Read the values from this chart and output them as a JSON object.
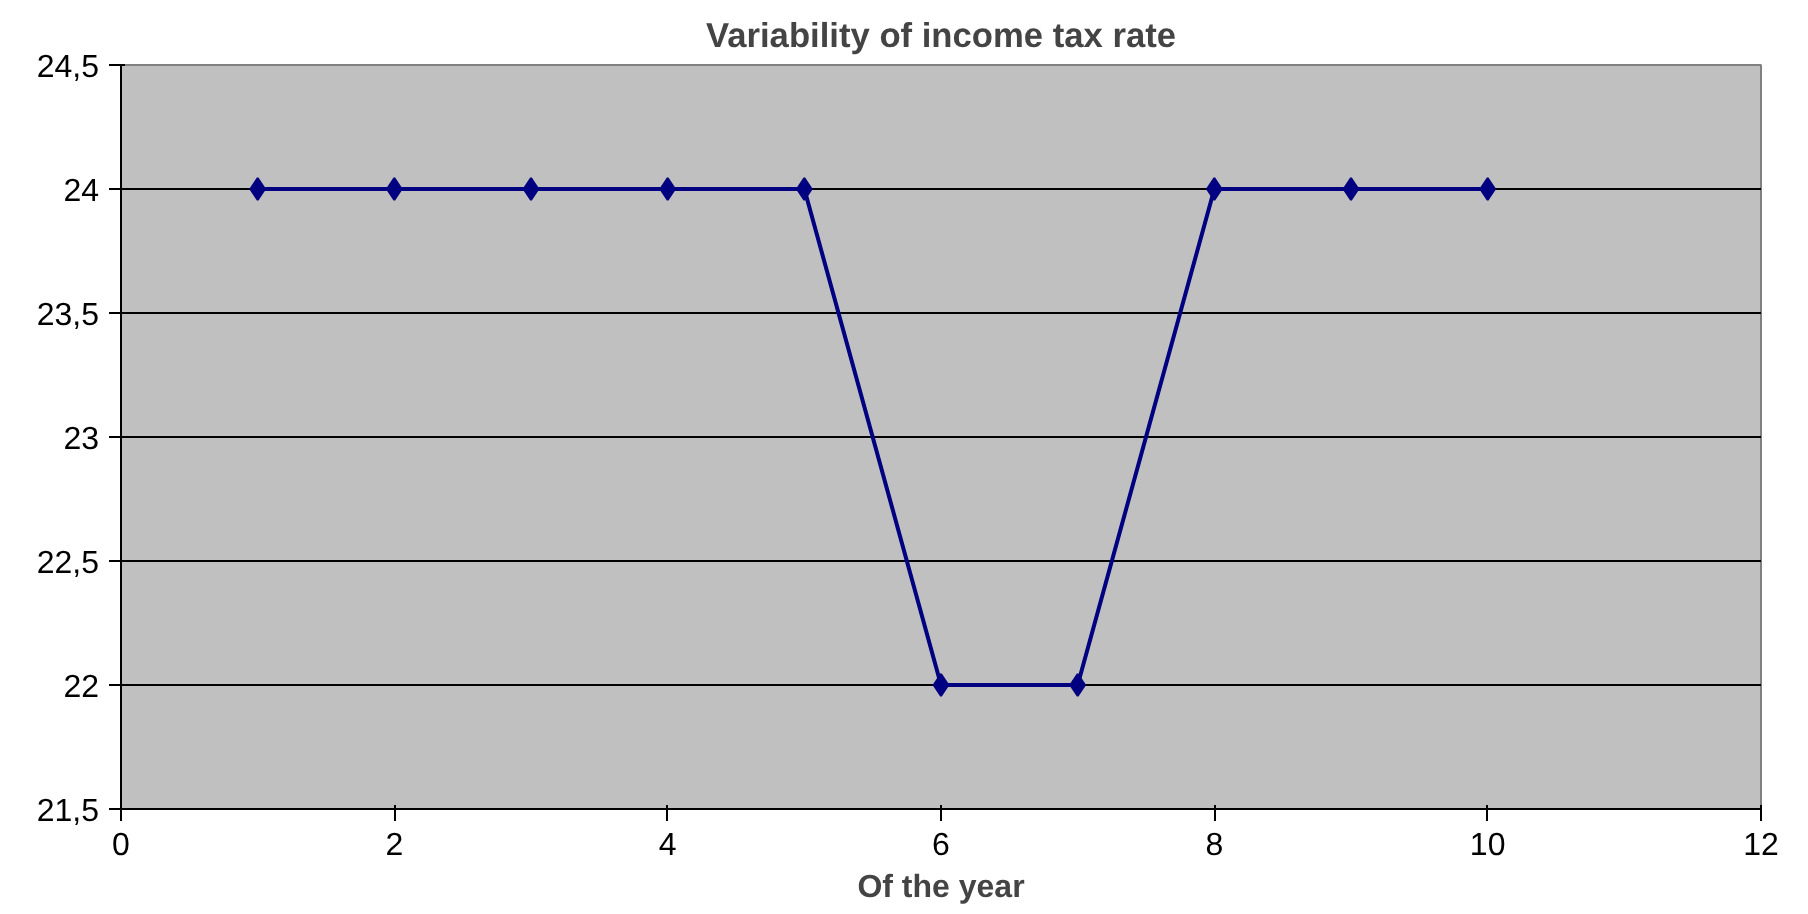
{
  "chart_data": {
    "type": "line",
    "title": "Variability of income tax rate",
    "xlabel": "Of the year",
    "x": [
      1,
      2,
      3,
      4,
      5,
      6,
      7,
      8,
      9,
      10
    ],
    "series": [
      {
        "color": "#000080",
        "values": [
          24,
          24,
          24,
          24,
          24,
          22,
          22,
          24,
          24,
          24
        ]
      }
    ],
    "xlim": [
      0,
      12
    ],
    "xticks": [
      0,
      2,
      4,
      6,
      8,
      10,
      12
    ],
    "ylim": [
      21.5,
      24.5
    ],
    "yticks": [
      {
        "value": 21.5,
        "label": "21,5"
      },
      22,
      {
        "value": 22.5,
        "label": "22,5"
      },
      23,
      {
        "value": 23.5,
        "label": "23,5"
      },
      24,
      {
        "value": 24.5,
        "label": "24,5"
      }
    ],
    "grid": "y",
    "marker": "diamond",
    "line_style": "solid"
  }
}
